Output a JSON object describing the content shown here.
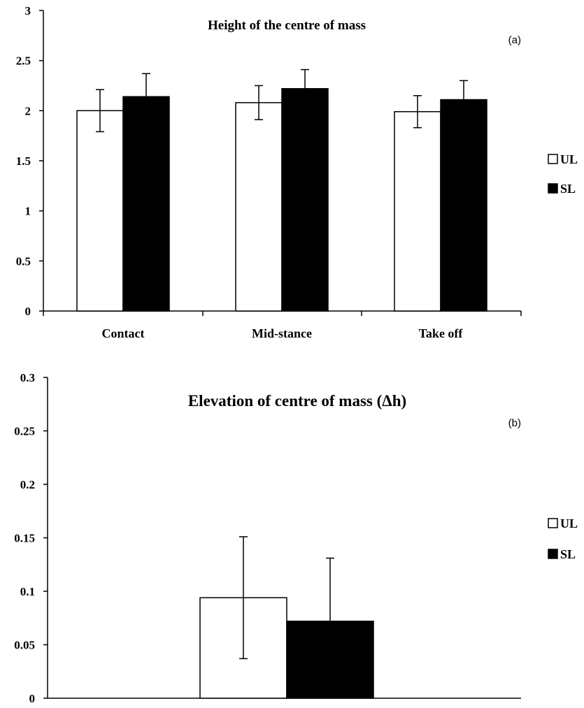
{
  "chart_data": [
    {
      "type": "bar",
      "title": "Height of the centre of mass",
      "panel_label": "(a)",
      "categories": [
        "Contact",
        "Mid-stance",
        "Take off"
      ],
      "ylim": [
        0,
        3
      ],
      "yticks": [
        "0",
        "0.5",
        "1",
        "1.5",
        "2",
        "2.5",
        "3"
      ],
      "legend_position": "right",
      "series": [
        {
          "name": "UL",
          "color": "#ffffff",
          "values": [
            2.0,
            2.08,
            1.99
          ],
          "errors": [
            0.21,
            0.17,
            0.16
          ]
        },
        {
          "name": "SL",
          "color": "#000000",
          "values": [
            2.14,
            2.22,
            2.11
          ],
          "errors": [
            0.23,
            0.19,
            0.19
          ]
        }
      ]
    },
    {
      "type": "bar",
      "title": "Elevation of centre of mass (Δh)",
      "panel_label": "(b)",
      "categories": [
        ""
      ],
      "ylim": [
        0,
        0.3
      ],
      "yticks": [
        "0",
        "0.05",
        "0.1",
        "0.15",
        "0.2",
        "0.25",
        "0.3"
      ],
      "legend_position": "right",
      "series": [
        {
          "name": "UL",
          "color": "#ffffff",
          "values": [
            0.094
          ],
          "errors": [
            0.057
          ]
        },
        {
          "name": "SL",
          "color": "#000000",
          "values": [
            0.072
          ],
          "errors": [
            0.059
          ]
        }
      ]
    }
  ]
}
